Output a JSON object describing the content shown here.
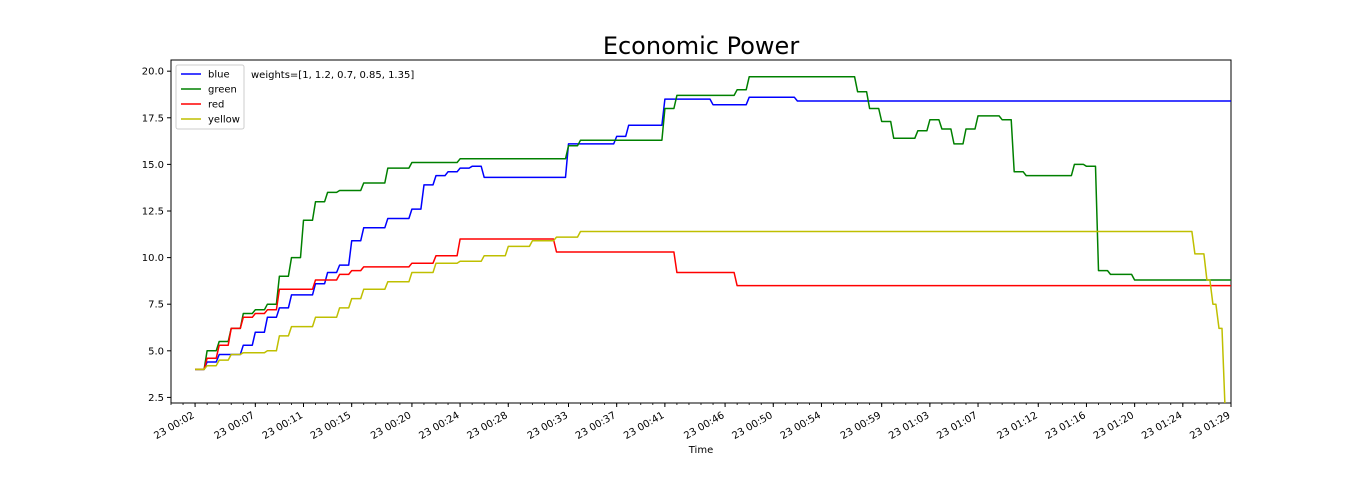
{
  "chart_data": {
    "type": "line",
    "title": "Economic Power",
    "xlabel": "Time",
    "ylabel": "",
    "annotation": "weights=[1, 1.2, 0.7, 0.85, 1.35]",
    "legend_position": "top-left",
    "grid": false,
    "x_unit": "minutes",
    "xlim": [
      0,
      88
    ],
    "ylim": [
      2.2,
      20.6
    ],
    "x_tick_values": [
      2,
      7,
      11,
      15,
      20,
      24,
      28,
      33,
      37,
      41,
      46,
      50,
      54,
      59,
      63,
      67,
      72,
      76,
      80,
      84,
      89
    ],
    "x_tick_labels": [
      "23 00:02",
      "23 00:07",
      "23 00:11",
      "23 00:15",
      "23 00:20",
      "23 00:24",
      "23 00:28",
      "23 00:33",
      "23 00:37",
      "23 00:41",
      "23 00:46",
      "23 00:50",
      "23 00:54",
      "23 00:59",
      "23 01:03",
      "23 01:07",
      "23 01:12",
      "23 01:16",
      "23 01:20",
      "23 01:24",
      "23 01:29"
    ],
    "y_ticks": [
      2.5,
      5.0,
      7.5,
      10.0,
      12.5,
      15.0,
      17.5,
      20.0
    ],
    "y_tick_labels": [
      "2.5",
      "5.0",
      "7.5",
      "10.0",
      "12.5",
      "15.0",
      "17.5",
      "20.0"
    ],
    "series": [
      {
        "name": "blue",
        "color": "#0000ff",
        "x": [
          2,
          3,
          4,
          6,
          7,
          8,
          9,
          10,
          12,
          13,
          14,
          15,
          16,
          18,
          19,
          20,
          21,
          22,
          23,
          24,
          25,
          26,
          28,
          29,
          31,
          32,
          33,
          34,
          35,
          36,
          37,
          38,
          40,
          41,
          42,
          44,
          45,
          46,
          47,
          48,
          50,
          51,
          52,
          54,
          55,
          56,
          58,
          60,
          61,
          62,
          64,
          66,
          68,
          70,
          72,
          74,
          76,
          78,
          80,
          82,
          84,
          86,
          88,
          89
        ],
        "y": [
          4.0,
          4.4,
          4.8,
          5.3,
          6.0,
          6.8,
          7.3,
          8.0,
          8.6,
          9.2,
          9.6,
          10.9,
          11.6,
          12.1,
          12.1,
          12.6,
          13.9,
          14.4,
          14.6,
          14.8,
          14.9,
          14.3,
          14.3,
          14.3,
          14.3,
          14.3,
          16.1,
          16.1,
          16.1,
          16.1,
          16.5,
          17.1,
          17.1,
          18.5,
          18.5,
          18.5,
          18.2,
          18.2,
          18.2,
          18.6,
          18.6,
          18.6,
          18.4,
          18.4,
          18.4,
          18.4,
          18.4,
          18.4,
          18.4,
          18.4,
          18.4,
          18.4,
          18.4,
          18.4,
          18.4,
          18.4,
          18.4,
          18.4,
          18.4,
          18.4,
          18.4,
          18.4,
          18.4,
          18.2
        ]
      },
      {
        "name": "green",
        "color": "#008000",
        "x": [
          2,
          3,
          4,
          5,
          6,
          7,
          8,
          9,
          10,
          11,
          12,
          13,
          14,
          15,
          16,
          18,
          20,
          22,
          24,
          26,
          28,
          30,
          32,
          33,
          34,
          36,
          38,
          40,
          41,
          42,
          44,
          46,
          47,
          48,
          50,
          52,
          54,
          56,
          57,
          58,
          59,
          60,
          61,
          62,
          63,
          64,
          65,
          66,
          67,
          68,
          69,
          70,
          71,
          72,
          73,
          74,
          75,
          76,
          77,
          78,
          80,
          82,
          84,
          86,
          88,
          89
        ],
        "y": [
          4.0,
          5.0,
          5.5,
          6.2,
          7.0,
          7.2,
          7.5,
          9.0,
          10.0,
          12.0,
          13.0,
          13.5,
          13.6,
          13.6,
          14.0,
          14.8,
          15.1,
          15.1,
          15.3,
          15.3,
          15.3,
          15.3,
          15.3,
          16.0,
          16.3,
          16.3,
          16.3,
          16.3,
          18.0,
          18.7,
          18.7,
          18.7,
          19.0,
          19.7,
          19.7,
          19.7,
          19.7,
          19.7,
          18.9,
          18.0,
          17.3,
          16.4,
          16.4,
          16.8,
          17.4,
          16.9,
          16.1,
          16.9,
          17.6,
          17.6,
          17.4,
          14.6,
          14.4,
          14.4,
          14.4,
          14.4,
          15.0,
          14.9,
          9.3,
          9.1,
          8.8,
          8.8,
          8.8,
          8.8,
          8.8,
          8.5
        ]
      },
      {
        "name": "red",
        "color": "#ff0000",
        "x": [
          2,
          3,
          4,
          5,
          6,
          7,
          8,
          9,
          10,
          12,
          14,
          15,
          16,
          18,
          20,
          22,
          24,
          26,
          28,
          30,
          31,
          32,
          34,
          36,
          38,
          40,
          41,
          42,
          44,
          46,
          47,
          48,
          50,
          52,
          56,
          60,
          64,
          68,
          72,
          76,
          80,
          84,
          88,
          89
        ],
        "y": [
          4.0,
          4.6,
          5.3,
          6.2,
          6.8,
          7.0,
          7.2,
          8.3,
          8.3,
          8.8,
          9.1,
          9.3,
          9.5,
          9.5,
          9.7,
          10.1,
          11.0,
          11.0,
          11.0,
          11.0,
          11.0,
          10.3,
          10.3,
          10.3,
          10.3,
          10.3,
          10.3,
          9.2,
          9.2,
          9.2,
          8.5,
          8.5,
          8.5,
          8.5,
          8.5,
          8.5,
          8.5,
          8.5,
          8.5,
          8.5,
          8.5,
          8.5,
          8.5,
          8.5
        ]
      },
      {
        "name": "yellow",
        "color": "#bfbf00",
        "x": [
          2,
          3,
          4,
          5,
          6,
          7,
          8,
          9,
          10,
          12,
          14,
          15,
          16,
          18,
          20,
          22,
          24,
          26,
          28,
          30,
          32,
          34,
          36,
          40,
          44,
          48,
          52,
          56,
          60,
          64,
          68,
          72,
          76,
          80,
          84,
          85,
          86,
          86.5,
          87,
          87.5,
          88,
          89
        ],
        "y": [
          4.0,
          4.2,
          4.5,
          4.8,
          4.9,
          4.9,
          5.0,
          5.8,
          6.3,
          6.8,
          7.3,
          7.8,
          8.3,
          8.7,
          9.2,
          9.7,
          9.8,
          10.1,
          10.6,
          10.9,
          11.1,
          11.4,
          11.4,
          11.4,
          11.4,
          11.4,
          11.4,
          11.4,
          11.4,
          11.4,
          11.4,
          11.4,
          11.4,
          11.4,
          11.4,
          10.2,
          8.8,
          7.5,
          6.2,
          2.0,
          2.0,
          1.3
        ]
      }
    ]
  }
}
